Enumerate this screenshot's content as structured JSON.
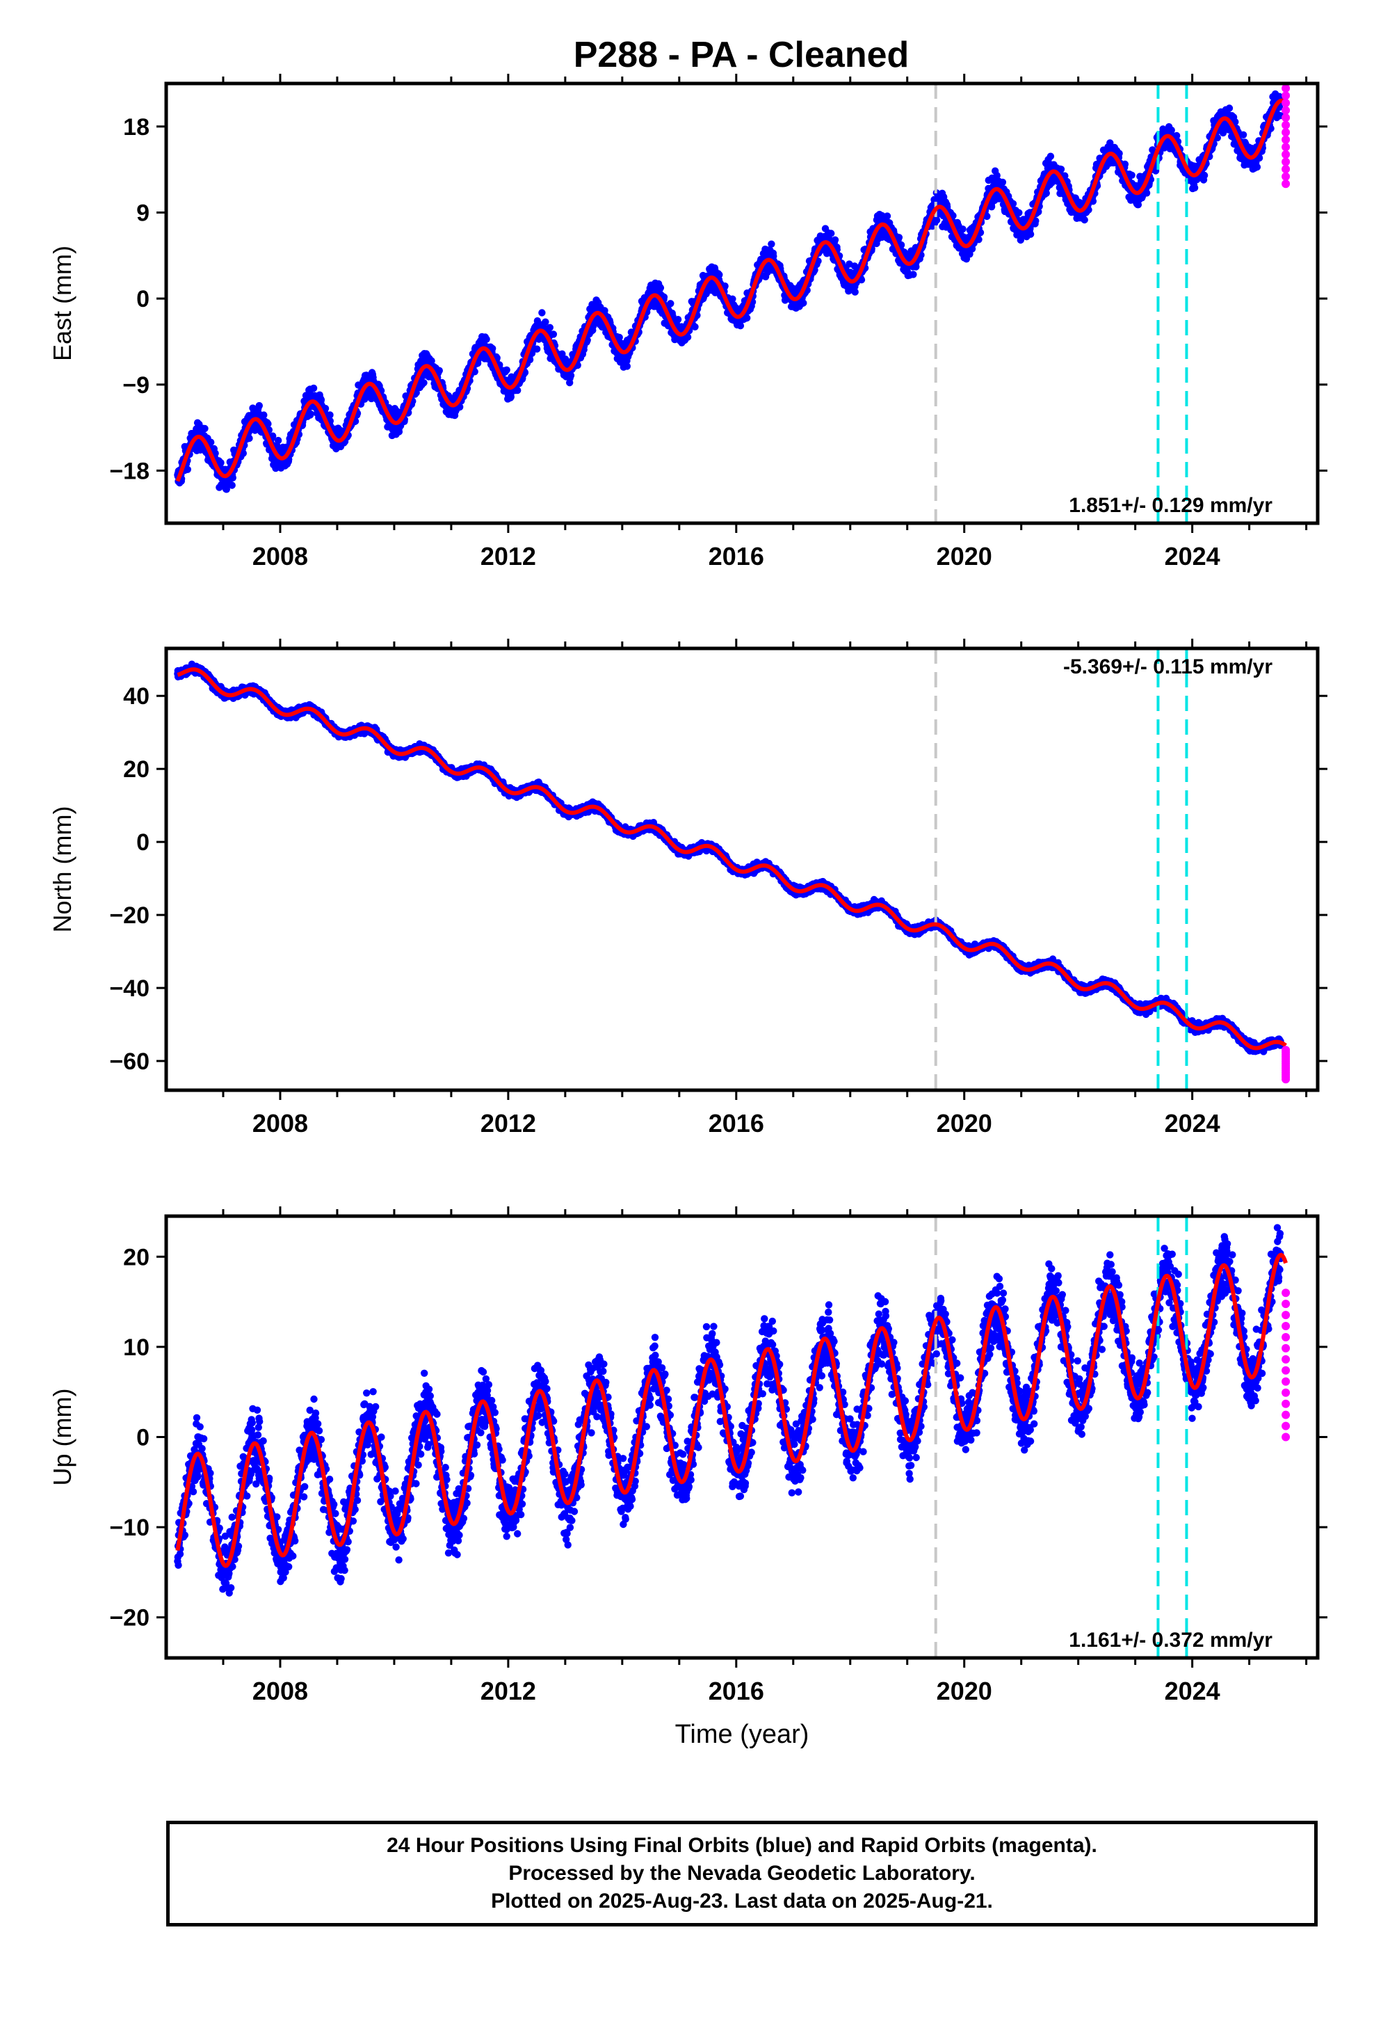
{
  "title": "P288  - PA - Cleaned",
  "chart_data": [
    {
      "type": "scatter",
      "name": "east",
      "ylabel": "East (mm)",
      "xlabel": "",
      "xlim": [
        2006.0,
        2026.2
      ],
      "ylim": [
        -23.5,
        22.5
      ],
      "yticks": [
        -18,
        -9,
        0,
        9,
        18
      ],
      "ytick_labels": [
        "−18",
        "−9",
        "0",
        "9",
        "18"
      ],
      "xticks": [
        2008,
        2012,
        2016,
        2020,
        2024
      ],
      "xtick_labels": [
        "2008",
        "2012",
        "2016",
        "2020",
        "2024"
      ],
      "rate_text": "1.851+/- 0.129 mm/yr",
      "rate_position": "bottom-right",
      "rate": 1.851,
      "intercept_2006": -18.0,
      "seasonal_amplitude": 2.5,
      "noise": 1.2,
      "rapid_values": [
        12,
        22
      ]
    },
    {
      "type": "scatter",
      "name": "north",
      "ylabel": "North (mm)",
      "xlabel": "",
      "xlim": [
        2006.0,
        2026.2
      ],
      "ylim": [
        -68,
        53
      ],
      "yticks": [
        -60,
        -40,
        -20,
        0,
        20,
        40
      ],
      "ytick_labels": [
        "−60",
        "−40",
        "−20",
        "0",
        "20",
        "40"
      ],
      "xticks": [
        2008,
        2012,
        2016,
        2020,
        2024
      ],
      "xtick_labels": [
        "2008",
        "2012",
        "2016",
        "2020",
        "2024"
      ],
      "rate_text": "-5.369+/- 0.115 mm/yr",
      "rate_position": "top-right",
      "rate": -5.369,
      "intercept_2006": 48.0,
      "seasonal_amplitude": 2.0,
      "noise": 1.0,
      "rapid_values": [
        -65,
        -57
      ]
    },
    {
      "type": "scatter",
      "name": "up",
      "ylabel": "Up (mm)",
      "xlabel": "Time (year)",
      "xlim": [
        2006.0,
        2026.2
      ],
      "ylim": [
        -24.5,
        24.5
      ],
      "yticks": [
        -20,
        -10,
        0,
        10,
        20
      ],
      "ytick_labels": [
        "−20",
        "−10",
        "0",
        "10",
        "20"
      ],
      "xticks": [
        2008,
        2012,
        2016,
        2020,
        2024
      ],
      "xtick_labels": [
        "2008",
        "2012",
        "2016",
        "2020",
        "2024"
      ],
      "rate_text": "1.161+/- 0.372 mm/yr",
      "rate_position": "bottom-right",
      "rate": 1.161,
      "intercept_2006": -9.0,
      "seasonal_amplitude": 6.5,
      "noise": 3.2,
      "rapid_values": [
        0,
        16
      ]
    }
  ],
  "event_lines": [
    {
      "year": 2019.5,
      "color": "#c8c8c8"
    },
    {
      "year": 2023.4,
      "color": "#00e5e5"
    },
    {
      "year": 2023.9,
      "color": "#00e5e5"
    }
  ],
  "colors": {
    "final_orbits": "#0000ff",
    "rapid_orbits": "#ff00ff",
    "model": "#ff0000"
  },
  "data_range": {
    "start": 2006.2,
    "end": 2025.64,
    "rapid_start": 2025.55
  },
  "footer": {
    "line1": "24 Hour Positions Using Final Orbits (blue) and Rapid Orbits (magenta).",
    "line2": "Processed by the Nevada Geodetic Laboratory.",
    "line3": "Plotted on 2025-Aug-23. Last data on 2025-Aug-21."
  }
}
